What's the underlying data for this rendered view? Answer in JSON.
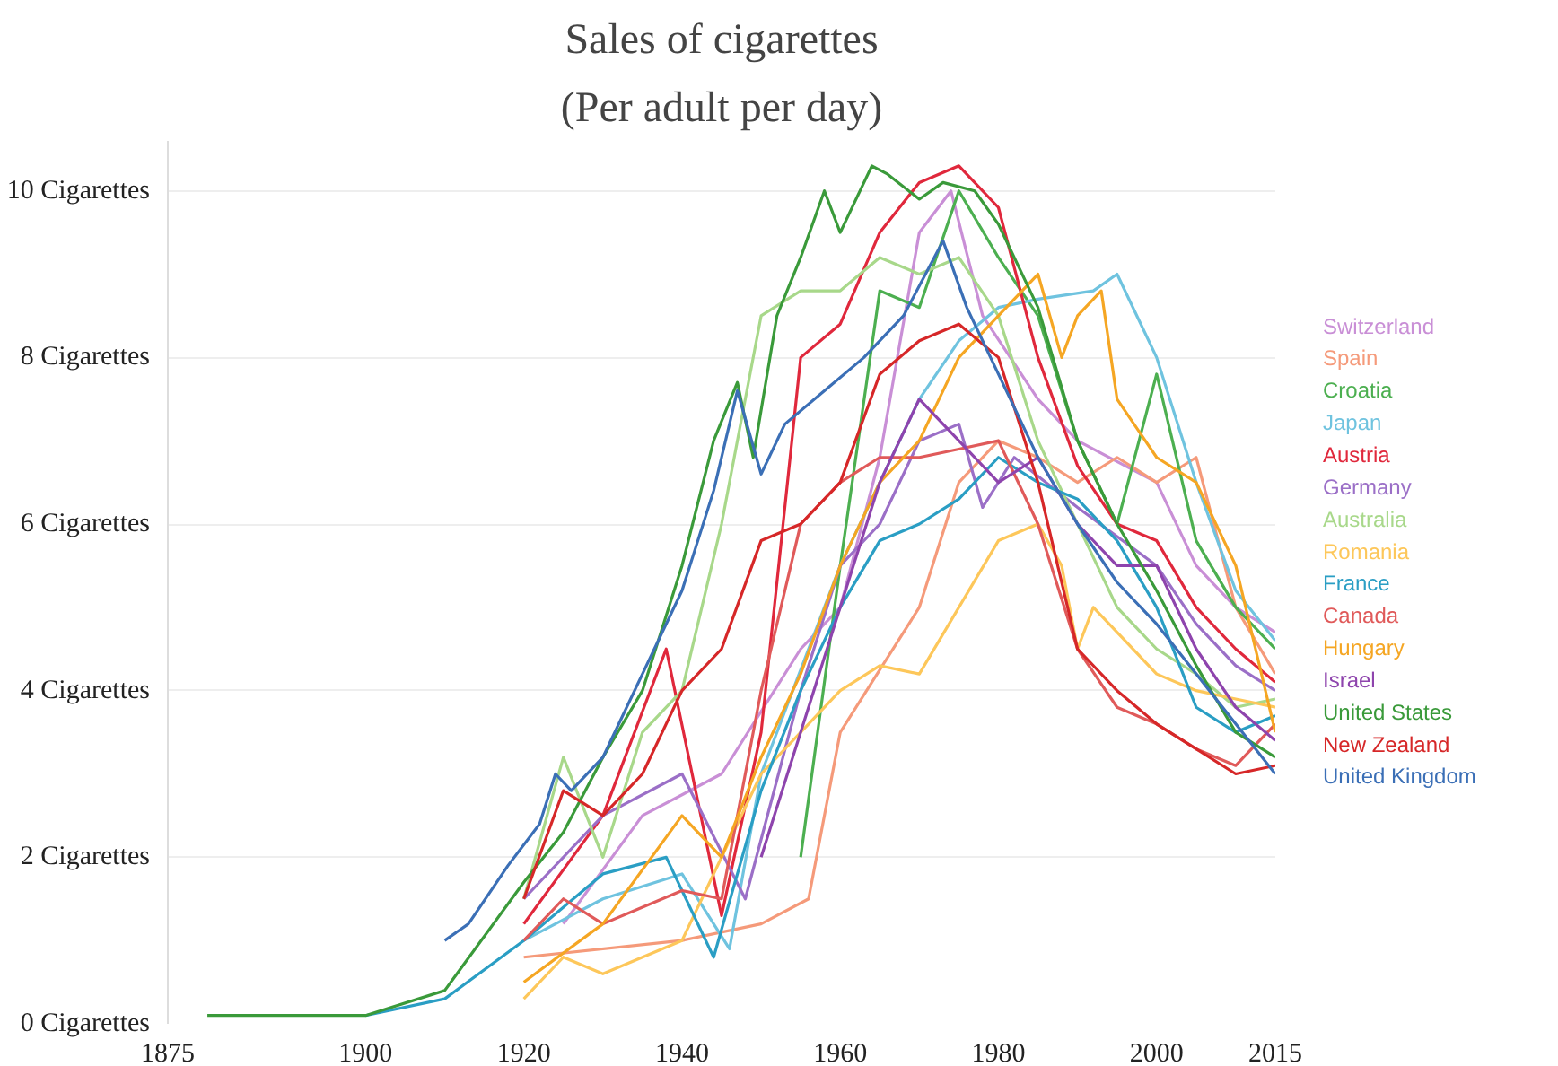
{
  "chart_data": {
    "type": "line",
    "title": "Sales of cigarettes",
    "subtitle": "(Per adult per day)",
    "xlim": [
      1875,
      2015
    ],
    "xticks": [
      1875,
      1900,
      1920,
      1940,
      1960,
      1980,
      2000,
      2015
    ],
    "ylim": [
      0,
      10.6
    ],
    "yticks": [
      {
        "value": 0,
        "label": "0 Cigarettes"
      },
      {
        "value": 2,
        "label": "2 Cigarettes"
      },
      {
        "value": 4,
        "label": "4 Cigarettes"
      },
      {
        "value": 6,
        "label": "6 Cigarettes"
      },
      {
        "value": 8,
        "label": "8 Cigarettes"
      },
      {
        "value": 10,
        "label": "10 Cigarettes"
      }
    ],
    "grid": "y",
    "line_style": "solid",
    "marker": "none",
    "series": [
      {
        "name": "Switzerland",
        "color": "#c98fd6",
        "x": [
          1925,
          1935,
          1945,
          1955,
          1960,
          1965,
          1970,
          1974,
          1978,
          1985,
          1990,
          2000,
          2005,
          2010,
          2015
        ],
        "values": [
          1.2,
          2.5,
          3.0,
          4.5,
          5.0,
          6.8,
          9.5,
          10.0,
          8.5,
          7.5,
          7.0,
          6.5,
          5.5,
          5.0,
          4.7
        ]
      },
      {
        "name": "Spain",
        "color": "#f59a7a",
        "x": [
          1920,
          1940,
          1950,
          1956,
          1960,
          1970,
          1975,
          1980,
          1985,
          1990,
          1995,
          2000,
          2005,
          2010,
          2015
        ],
        "values": [
          0.8,
          1.0,
          1.2,
          1.5,
          3.5,
          5.0,
          6.5,
          7.0,
          6.8,
          6.5,
          6.8,
          6.5,
          6.8,
          5.0,
          4.2
        ]
      },
      {
        "name": "Croatia",
        "color": "#4caf50",
        "x": [
          1955,
          1960,
          1965,
          1970,
          1975,
          1980,
          1985,
          1990,
          1995,
          2000,
          2005,
          2010,
          2015
        ],
        "values": [
          2.0,
          5.5,
          8.8,
          8.6,
          10.0,
          9.2,
          8.5,
          7.0,
          6.0,
          7.8,
          5.8,
          5.0,
          4.5
        ]
      },
      {
        "name": "Japan",
        "color": "#6fc3df",
        "x": [
          1920,
          1930,
          1940,
          1946,
          1950,
          1960,
          1970,
          1975,
          1980,
          1985,
          1992,
          1995,
          2000,
          2005,
          2010,
          2015
        ],
        "values": [
          1.0,
          1.5,
          1.8,
          0.9,
          3.0,
          5.5,
          7.5,
          8.2,
          8.6,
          8.7,
          8.8,
          9.0,
          8.0,
          6.5,
          5.2,
          4.6
        ]
      },
      {
        "name": "Austria",
        "color": "#e0283c",
        "x": [
          1920,
          1930,
          1938,
          1945,
          1950,
          1955,
          1960,
          1965,
          1970,
          1975,
          1980,
          1985,
          1990,
          1995,
          2000,
          2005,
          2010,
          2015
        ],
        "values": [
          1.2,
          2.5,
          4.5,
          1.3,
          3.5,
          8.0,
          8.4,
          9.5,
          10.1,
          10.3,
          9.8,
          8.0,
          6.7,
          6.0,
          5.8,
          5.0,
          4.5,
          4.1
        ]
      },
      {
        "name": "Germany",
        "color": "#9b6fc7",
        "x": [
          1920,
          1930,
          1940,
          1948,
          1955,
          1960,
          1965,
          1970,
          1975,
          1978,
          1982,
          1990,
          2000,
          2005,
          2010,
          2015
        ],
        "values": [
          1.5,
          2.5,
          3.0,
          1.5,
          4.0,
          5.5,
          6.0,
          7.0,
          7.2,
          6.2,
          6.8,
          6.2,
          5.5,
          4.8,
          4.3,
          4.0
        ]
      },
      {
        "name": "Australia",
        "color": "#a8d88a",
        "x": [
          1920,
          1925,
          1930,
          1935,
          1940,
          1945,
          1950,
          1955,
          1960,
          1965,
          1970,
          1975,
          1980,
          1985,
          1990,
          1995,
          2000,
          2005,
          2010,
          2015
        ],
        "values": [
          1.5,
          3.2,
          2.0,
          3.5,
          4.0,
          6.0,
          8.5,
          8.8,
          8.8,
          9.2,
          9.0,
          9.2,
          8.5,
          7.0,
          6.0,
          5.0,
          4.5,
          4.2,
          3.8,
          3.9
        ]
      },
      {
        "name": "Romania",
        "color": "#fdc75a",
        "x": [
          1920,
          1925,
          1930,
          1940,
          1950,
          1955,
          1960,
          1965,
          1970,
          1975,
          1980,
          1985,
          1988,
          1990,
          1992,
          1995,
          2000,
          2005,
          2010,
          2015
        ],
        "values": [
          0.3,
          0.8,
          0.6,
          1.0,
          3.0,
          3.5,
          4.0,
          4.3,
          4.2,
          5.0,
          5.8,
          6.0,
          5.5,
          4.5,
          5.0,
          4.7,
          4.2,
          4.0,
          3.9,
          3.8
        ]
      },
      {
        "name": "France",
        "color": "#2a9ec4",
        "x": [
          1900,
          1910,
          1920,
          1930,
          1938,
          1944,
          1950,
          1955,
          1960,
          1965,
          1970,
          1975,
          1980,
          1985,
          1990,
          1995,
          2000,
          2005,
          2010,
          2015
        ],
        "values": [
          0.1,
          0.3,
          1.0,
          1.8,
          2.0,
          0.8,
          2.8,
          4.0,
          5.0,
          5.8,
          6.0,
          6.3,
          6.8,
          6.5,
          6.3,
          5.8,
          5.0,
          3.8,
          3.5,
          3.7
        ]
      },
      {
        "name": "Canada",
        "color": "#e05a5a",
        "x": [
          1920,
          1925,
          1930,
          1940,
          1945,
          1950,
          1955,
          1960,
          1965,
          1970,
          1975,
          1980,
          1985,
          1990,
          1995,
          2000,
          2005,
          2010,
          2015
        ],
        "values": [
          1.0,
          1.5,
          1.2,
          1.6,
          1.5,
          4.0,
          6.0,
          6.5,
          6.8,
          6.8,
          6.9,
          7.0,
          6.0,
          4.5,
          3.8,
          3.6,
          3.3,
          3.1,
          3.6
        ]
      },
      {
        "name": "Hungary",
        "color": "#f5a623",
        "x": [
          1920,
          1930,
          1940,
          1945,
          1950,
          1955,
          1960,
          1965,
          1970,
          1975,
          1980,
          1985,
          1988,
          1990,
          1993,
          1995,
          2000,
          2005,
          2010,
          2015
        ],
        "values": [
          0.5,
          1.2,
          2.5,
          2.0,
          3.2,
          4.2,
          5.5,
          6.5,
          7.0,
          8.0,
          8.5,
          9.0,
          8.0,
          8.5,
          8.8,
          7.5,
          6.8,
          6.5,
          5.5,
          3.5
        ]
      },
      {
        "name": "Israel",
        "color": "#8e44ad",
        "x": [
          1950,
          1955,
          1960,
          1965,
          1970,
          1975,
          1980,
          1985,
          1990,
          1995,
          2000,
          2005,
          2010,
          2015
        ],
        "values": [
          2.0,
          3.5,
          5.0,
          6.5,
          7.5,
          7.0,
          6.5,
          6.8,
          6.0,
          5.5,
          5.5,
          4.5,
          3.8,
          3.4
        ]
      },
      {
        "name": "United States",
        "color": "#3a9a3a",
        "x": [
          1880,
          1900,
          1910,
          1920,
          1925,
          1930,
          1935,
          1940,
          1944,
          1947,
          1949,
          1952,
          1955,
          1958,
          1960,
          1964,
          1966,
          1970,
          1973,
          1977,
          1980,
          1985,
          1990,
          1995,
          2000,
          2005,
          2010,
          2015
        ],
        "values": [
          0.1,
          0.1,
          0.4,
          1.7,
          2.3,
          3.2,
          4.0,
          5.5,
          7.0,
          7.7,
          6.8,
          8.5,
          9.2,
          10.0,
          9.5,
          10.3,
          10.2,
          9.9,
          10.1,
          10.0,
          9.6,
          8.6,
          7.0,
          6.0,
          5.2,
          4.3,
          3.5,
          3.2
        ]
      },
      {
        "name": "New Zealand",
        "color": "#d62728",
        "x": [
          1920,
          1925,
          1930,
          1935,
          1940,
          1945,
          1950,
          1955,
          1960,
          1965,
          1970,
          1975,
          1980,
          1985,
          1990,
          1995,
          2000,
          2005,
          2010,
          2015
        ],
        "values": [
          1.5,
          2.8,
          2.5,
          3.0,
          4.0,
          4.5,
          5.8,
          6.0,
          6.5,
          7.8,
          8.2,
          8.4,
          8.0,
          6.5,
          4.5,
          4.0,
          3.6,
          3.3,
          3.0,
          3.1
        ]
      },
      {
        "name": "United Kingdom",
        "color": "#3b6fb6",
        "x": [
          1910,
          1913,
          1918,
          1922,
          1924,
          1926,
          1930,
          1935,
          1940,
          1944,
          1947,
          1950,
          1953,
          1958,
          1963,
          1968,
          1973,
          1976,
          1980,
          1985,
          1990,
          1995,
          2000,
          2005,
          2010,
          2015
        ],
        "values": [
          1.0,
          1.2,
          1.9,
          2.4,
          3.0,
          2.8,
          3.2,
          4.2,
          5.2,
          6.4,
          7.6,
          6.6,
          7.2,
          7.6,
          8.0,
          8.5,
          9.4,
          8.6,
          7.8,
          6.8,
          6.0,
          5.3,
          4.8,
          4.2,
          3.6,
          3.0
        ]
      }
    ]
  }
}
